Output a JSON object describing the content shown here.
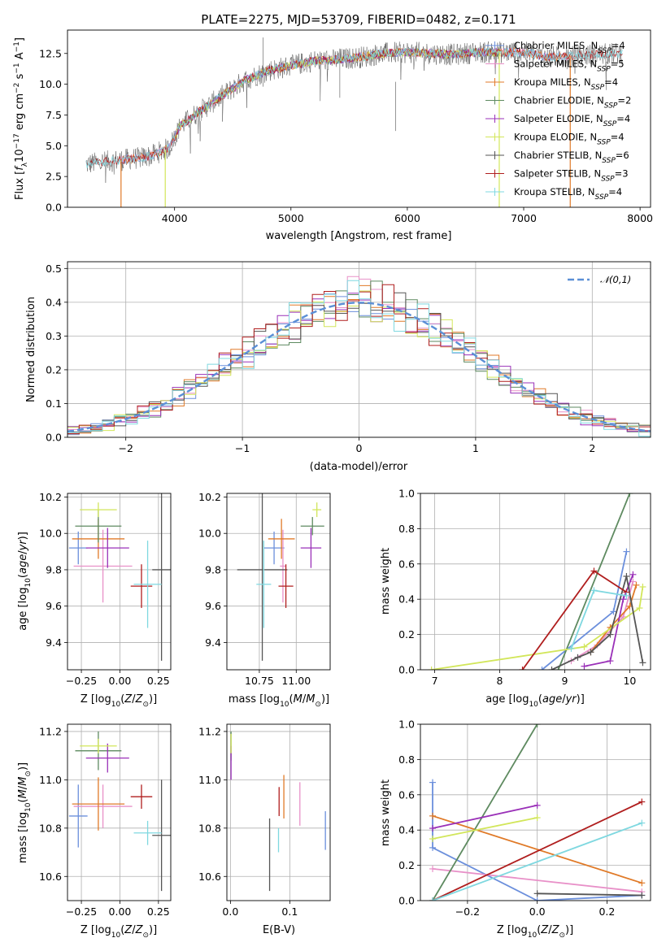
{
  "figure": {
    "title": "PLATE=2275, MJD=53709, FIBERID=0482, z=0.171"
  },
  "colors": {
    "Chabrier MILES": "#6b8fdc",
    "Salpeter MILES": "#e890c8",
    "Kroupa MILES": "#e07a28",
    "Chabrier ELODIE": "#5e8a60",
    "Salpeter ELODIE": "#9a30b8",
    "Kroupa ELODIE": "#d2e65a",
    "Chabrier STELIB": "#555555",
    "Salpeter STELIB": "#b01e1e",
    "Kroupa STELIB": "#7fd8e0"
  },
  "chart_data": [
    {
      "id": "spectrum",
      "type": "line",
      "title": "PLATE=2275, MJD=53709, FIBERID=0482, z=0.171",
      "xlabel": "wavelength [Angstrom, rest frame]",
      "ylabel": "Flux [f_λ 10^-17 erg cm^-2 s^-1 A^-1]",
      "xlim": [
        3080,
        8090
      ],
      "ylim": [
        0,
        14.4
      ],
      "xticks": [
        4000,
        5000,
        6000,
        7000,
        8000
      ],
      "yticks": [
        0.0,
        2.5,
        5.0,
        7.5,
        10.0,
        12.5
      ],
      "grid": false,
      "legend": "upper right",
      "series": [
        {
          "name": "Chabrier MILES, N_SSP=4"
        },
        {
          "name": "Salpeter MILES, N_SSP=5"
        },
        {
          "name": "Kroupa MILES, N_SSP=4"
        },
        {
          "name": "Chabrier ELODIE, N_SSP=2"
        },
        {
          "name": "Salpeter ELODIE, N_SSP=4"
        },
        {
          "name": "Kroupa ELODIE, N_SSP=4"
        },
        {
          "name": "Chabrier STELIB, N_SSP=6"
        },
        {
          "name": "Salpeter STELIB, N_SSP=3"
        },
        {
          "name": "Kroupa STELIB, N_SSP=4"
        }
      ],
      "continuum": {
        "x": [
          3240,
          3400,
          3500,
          3600,
          3700,
          3800,
          3950,
          4050,
          4200,
          4400,
          4600,
          4800,
          5000,
          5200,
          5400,
          5600,
          5800,
          6000,
          6200,
          6400,
          6600,
          6800,
          7000,
          7200,
          7400,
          7600,
          7850
        ],
        "y": [
          3.5,
          3.7,
          3.8,
          3.9,
          4.0,
          4.2,
          4.8,
          6.6,
          7.7,
          9.0,
          10.3,
          11.1,
          11.5,
          11.9,
          12.0,
          12.2,
          12.5,
          12.6,
          12.5,
          12.4,
          12.6,
          12.6,
          12.6,
          12.2,
          12.3,
          12.4,
          12.5
        ]
      }
    },
    {
      "id": "residuals",
      "type": "bar",
      "xlabel": "(data-model)/error",
      "ylabel": "Normed distribution",
      "xlim": [
        -2.5,
        2.5
      ],
      "ylim": [
        0,
        0.52
      ],
      "xticks": [
        -2,
        -1,
        0,
        1,
        2
      ],
      "yticks": [
        0.0,
        0.1,
        0.2,
        0.3,
        0.4,
        0.5
      ],
      "grid": true,
      "legend": "upper right",
      "reference_curve": "𝒩(0,1)",
      "bin_width": 0.1
    },
    {
      "id": "age-vs-Z",
      "type": "scatter",
      "xlabel": "Z [log10(Z/Z⊙)]",
      "ylabel": "age [log10(age/yr)]",
      "xlim": [
        -0.34,
        0.33
      ],
      "ylim": [
        9.25,
        10.22
      ],
      "xticks": [
        -0.25,
        0.0,
        0.25
      ],
      "yticks": [
        9.4,
        9.6,
        9.8,
        10.0,
        10.2
      ],
      "grid": true,
      "points": [
        {
          "model": "Chabrier MILES",
          "x": -0.27,
          "y": 9.92,
          "dx": 0.06,
          "dy": 0.09
        },
        {
          "model": "Salpeter MILES",
          "x": -0.11,
          "y": 9.82,
          "dx": 0.19,
          "dy": 0.2
        },
        {
          "model": "Kroupa MILES",
          "x": -0.14,
          "y": 9.97,
          "dx": 0.17,
          "dy": 0.11
        },
        {
          "model": "Chabrier ELODIE",
          "x": -0.14,
          "y": 10.04,
          "dx": 0.15,
          "dy": 0.09
        },
        {
          "model": "Salpeter ELODIE",
          "x": -0.08,
          "y": 9.92,
          "dx": 0.14,
          "dy": 0.11
        },
        {
          "model": "Kroupa ELODIE",
          "x": -0.14,
          "y": 10.13,
          "dx": 0.12,
          "dy": 0.04
        },
        {
          "model": "Chabrier STELIB",
          "x": 0.27,
          "y": 9.8,
          "dx": 0.06,
          "dy": 0.5
        },
        {
          "model": "Salpeter STELIB",
          "x": 0.14,
          "y": 9.71,
          "dx": 0.07,
          "dy": 0.12
        },
        {
          "model": "Kroupa STELIB",
          "x": 0.18,
          "y": 9.72,
          "dx": 0.09,
          "dy": 0.24
        }
      ]
    },
    {
      "id": "age-vs-mass",
      "type": "scatter",
      "xlabel": "mass [log10(M/M⊙)]",
      "ylabel": "",
      "xlim": [
        10.53,
        11.23
      ],
      "ylim": [
        9.25,
        10.22
      ],
      "xticks": [
        10.75,
        11.0
      ],
      "yticks": [
        9.4,
        9.6,
        9.8,
        10.0,
        10.2
      ],
      "grid": true,
      "points": [
        {
          "model": "Chabrier MILES",
          "x": 10.85,
          "y": 9.92,
          "dx": 0.07,
          "dy": 0.09
        },
        {
          "model": "Salpeter MILES",
          "x": 10.91,
          "y": 9.82,
          "dx": 0.02,
          "dy": 0.2
        },
        {
          "model": "Kroupa MILES",
          "x": 10.9,
          "y": 9.97,
          "dx": 0.09,
          "dy": 0.11
        },
        {
          "model": "Chabrier ELODIE",
          "x": 11.11,
          "y": 10.04,
          "dx": 0.08,
          "dy": 0.05
        },
        {
          "model": "Salpeter ELODIE",
          "x": 11.1,
          "y": 9.92,
          "dx": 0.07,
          "dy": 0.11
        },
        {
          "model": "Kroupa ELODIE",
          "x": 11.14,
          "y": 10.13,
          "dx": 0.03,
          "dy": 0.04
        },
        {
          "model": "Chabrier STELIB",
          "x": 10.77,
          "y": 9.8,
          "dx": 0.17,
          "dy": 0.5
        },
        {
          "model": "Salpeter STELIB",
          "x": 10.93,
          "y": 9.71,
          "dx": 0.05,
          "dy": 0.12
        },
        {
          "model": "Kroupa STELIB",
          "x": 10.78,
          "y": 9.72,
          "dx": 0.05,
          "dy": 0.24
        }
      ]
    },
    {
      "id": "weight-vs-age",
      "type": "line",
      "xlabel": "age [log10(age/yr)]",
      "ylabel": "mass weight",
      "xlim": [
        6.78,
        10.32
      ],
      "ylim": [
        0,
        1.0
      ],
      "xticks": [
        7,
        8,
        9,
        10
      ],
      "yticks": [
        0.0,
        0.2,
        0.4,
        0.6,
        0.8,
        1.0
      ],
      "grid": true,
      "series": [
        {
          "model": "Chabrier MILES",
          "x": [
            8.65,
            9.75,
            9.95
          ],
          "y": [
            0.0,
            0.33,
            0.67
          ]
        },
        {
          "model": "Salpeter MILES",
          "x": [
            9.1,
            9.5,
            9.9,
            10.05
          ],
          "y": [
            0.05,
            0.14,
            0.3,
            0.5
          ]
        },
        {
          "model": "Kroupa MILES",
          "x": [
            9.4,
            9.7,
            10.0,
            10.1
          ],
          "y": [
            0.1,
            0.24,
            0.36,
            0.48
          ]
        },
        {
          "model": "Chabrier ELODIE",
          "x": [
            8.9,
            10.0
          ],
          "y": [
            0.0,
            1.0
          ]
        },
        {
          "model": "Salpeter ELODIE",
          "x": [
            9.3,
            9.7,
            9.9,
            10.05
          ],
          "y": [
            0.02,
            0.05,
            0.4,
            0.54
          ]
        },
        {
          "model": "Kroupa ELODIE",
          "x": [
            6.95,
            9.3,
            10.15,
            10.2
          ],
          "y": [
            0.0,
            0.13,
            0.35,
            0.47
          ]
        },
        {
          "model": "Chabrier STELIB",
          "x": [
            8.8,
            9.2,
            9.4,
            9.7,
            9.95,
            10.2
          ],
          "y": [
            0.0,
            0.07,
            0.1,
            0.2,
            0.53,
            0.04
          ]
        },
        {
          "model": "Salpeter STELIB",
          "x": [
            8.35,
            9.45,
            9.95
          ],
          "y": [
            0.0,
            0.56,
            0.44
          ]
        },
        {
          "model": "Kroupa STELIB",
          "x": [
            9.1,
            9.45,
            9.95
          ],
          "y": [
            0.12,
            0.45,
            0.42
          ]
        }
      ]
    },
    {
      "id": "mass-vs-Z",
      "type": "scatter",
      "xlabel": "Z [log10(Z/Z⊙)]",
      "ylabel": "mass [log10(M/M⊙)]",
      "xlim": [
        -0.34,
        0.33
      ],
      "ylim": [
        10.5,
        11.23
      ],
      "xticks": [
        -0.25,
        0.0,
        0.25
      ],
      "yticks": [
        10.6,
        10.8,
        11.0,
        11.2
      ],
      "grid": true,
      "points": [
        {
          "model": "Chabrier MILES",
          "x": -0.27,
          "y": 10.85,
          "dx": 0.06,
          "dy": 0.13
        },
        {
          "model": "Salpeter MILES",
          "x": -0.11,
          "y": 10.89,
          "dx": 0.19,
          "dy": 0.09
        },
        {
          "model": "Kroupa MILES",
          "x": -0.14,
          "y": 10.9,
          "dx": 0.17,
          "dy": 0.11
        },
        {
          "model": "Chabrier ELODIE",
          "x": -0.14,
          "y": 11.12,
          "dx": 0.15,
          "dy": 0.08
        },
        {
          "model": "Salpeter ELODIE",
          "x": -0.08,
          "y": 11.09,
          "dx": 0.14,
          "dy": 0.06
        },
        {
          "model": "Kroupa ELODIE",
          "x": -0.14,
          "y": 11.14,
          "dx": 0.12,
          "dy": 0.03
        },
        {
          "model": "Chabrier STELIB",
          "x": 0.27,
          "y": 10.77,
          "dx": 0.06,
          "dy": 0.23
        },
        {
          "model": "Salpeter STELIB",
          "x": 0.14,
          "y": 10.93,
          "dx": 0.07,
          "dy": 0.05
        },
        {
          "model": "Kroupa STELIB",
          "x": 0.18,
          "y": 10.78,
          "dx": 0.09,
          "dy": 0.05
        }
      ]
    },
    {
      "id": "mass-vs-ebv",
      "type": "scatter",
      "xlabel": "E(B-V)",
      "ylabel": "",
      "xlim": [
        -0.006,
        0.168
      ],
      "ylim": [
        10.5,
        11.23
      ],
      "xticks": [
        0.0,
        0.1
      ],
      "yticks": [
        10.6,
        10.8,
        11.0,
        11.2
      ],
      "grid": true,
      "points": [
        {
          "model": "Chabrier MILES",
          "x": 0.16,
          "y": 10.79,
          "dy": 0.08
        },
        {
          "model": "Salpeter MILES",
          "x": 0.117,
          "y": 10.9,
          "dy": 0.09
        },
        {
          "model": "Kroupa MILES",
          "x": 0.09,
          "y": 10.93,
          "dy": 0.09
        },
        {
          "model": "Chabrier ELODIE",
          "x": 0.001,
          "y": 11.14,
          "dy": 0.06
        },
        {
          "model": "Salpeter ELODIE",
          "x": 0.001,
          "y": 11.07,
          "dy": 0.07
        },
        {
          "model": "Kroupa ELODIE",
          "x": 0.001,
          "y": 11.15,
          "dy": 0.04
        },
        {
          "model": "Chabrier STELIB",
          "x": 0.066,
          "y": 10.69,
          "dy": 0.15
        },
        {
          "model": "Salpeter STELIB",
          "x": 0.082,
          "y": 10.91,
          "dy": 0.06
        },
        {
          "model": "Kroupa STELIB",
          "x": 0.081,
          "y": 10.75,
          "dy": 0.05
        }
      ]
    },
    {
      "id": "weight-vs-Z",
      "type": "line",
      "xlabel": "Z [log10(Z/Z⊙)]",
      "ylabel": "mass weight",
      "xlim": [
        -0.335,
        0.325
      ],
      "ylim": [
        0,
        1.0
      ],
      "xticks": [
        -0.2,
        0.0,
        0.2
      ],
      "yticks": [
        0.0,
        0.2,
        0.4,
        0.6,
        0.8,
        1.0
      ],
      "grid": true,
      "series": [
        {
          "model": "Chabrier MILES",
          "x": [
            -0.3,
            -0.3,
            0.0,
            0.3
          ],
          "y": [
            0.67,
            0.3,
            0.0,
            0.03
          ]
        },
        {
          "model": "Salpeter MILES",
          "x": [
            -0.3,
            0.3
          ],
          "y": [
            0.18,
            0.05
          ]
        },
        {
          "model": "Kroupa MILES",
          "x": [
            -0.3,
            0.3
          ],
          "y": [
            0.48,
            0.1
          ]
        },
        {
          "model": "Chabrier ELODIE",
          "x": [
            -0.3,
            0.0
          ],
          "y": [
            0.0,
            1.0
          ]
        },
        {
          "model": "Salpeter ELODIE",
          "x": [
            -0.3,
            0.0
          ],
          "y": [
            0.41,
            0.54
          ]
        },
        {
          "model": "Kroupa ELODIE",
          "x": [
            -0.3,
            0.0
          ],
          "y": [
            0.35,
            0.47
          ]
        },
        {
          "model": "Chabrier STELIB",
          "x": [
            0.0,
            0.3
          ],
          "y": [
            0.04,
            0.03
          ]
        },
        {
          "model": "Salpeter STELIB",
          "x": [
            -0.3,
            0.3
          ],
          "y": [
            0.0,
            0.56
          ]
        },
        {
          "model": "Kroupa STELIB",
          "x": [
            -0.3,
            0.3
          ],
          "y": [
            0.0,
            0.44
          ]
        }
      ]
    }
  ]
}
